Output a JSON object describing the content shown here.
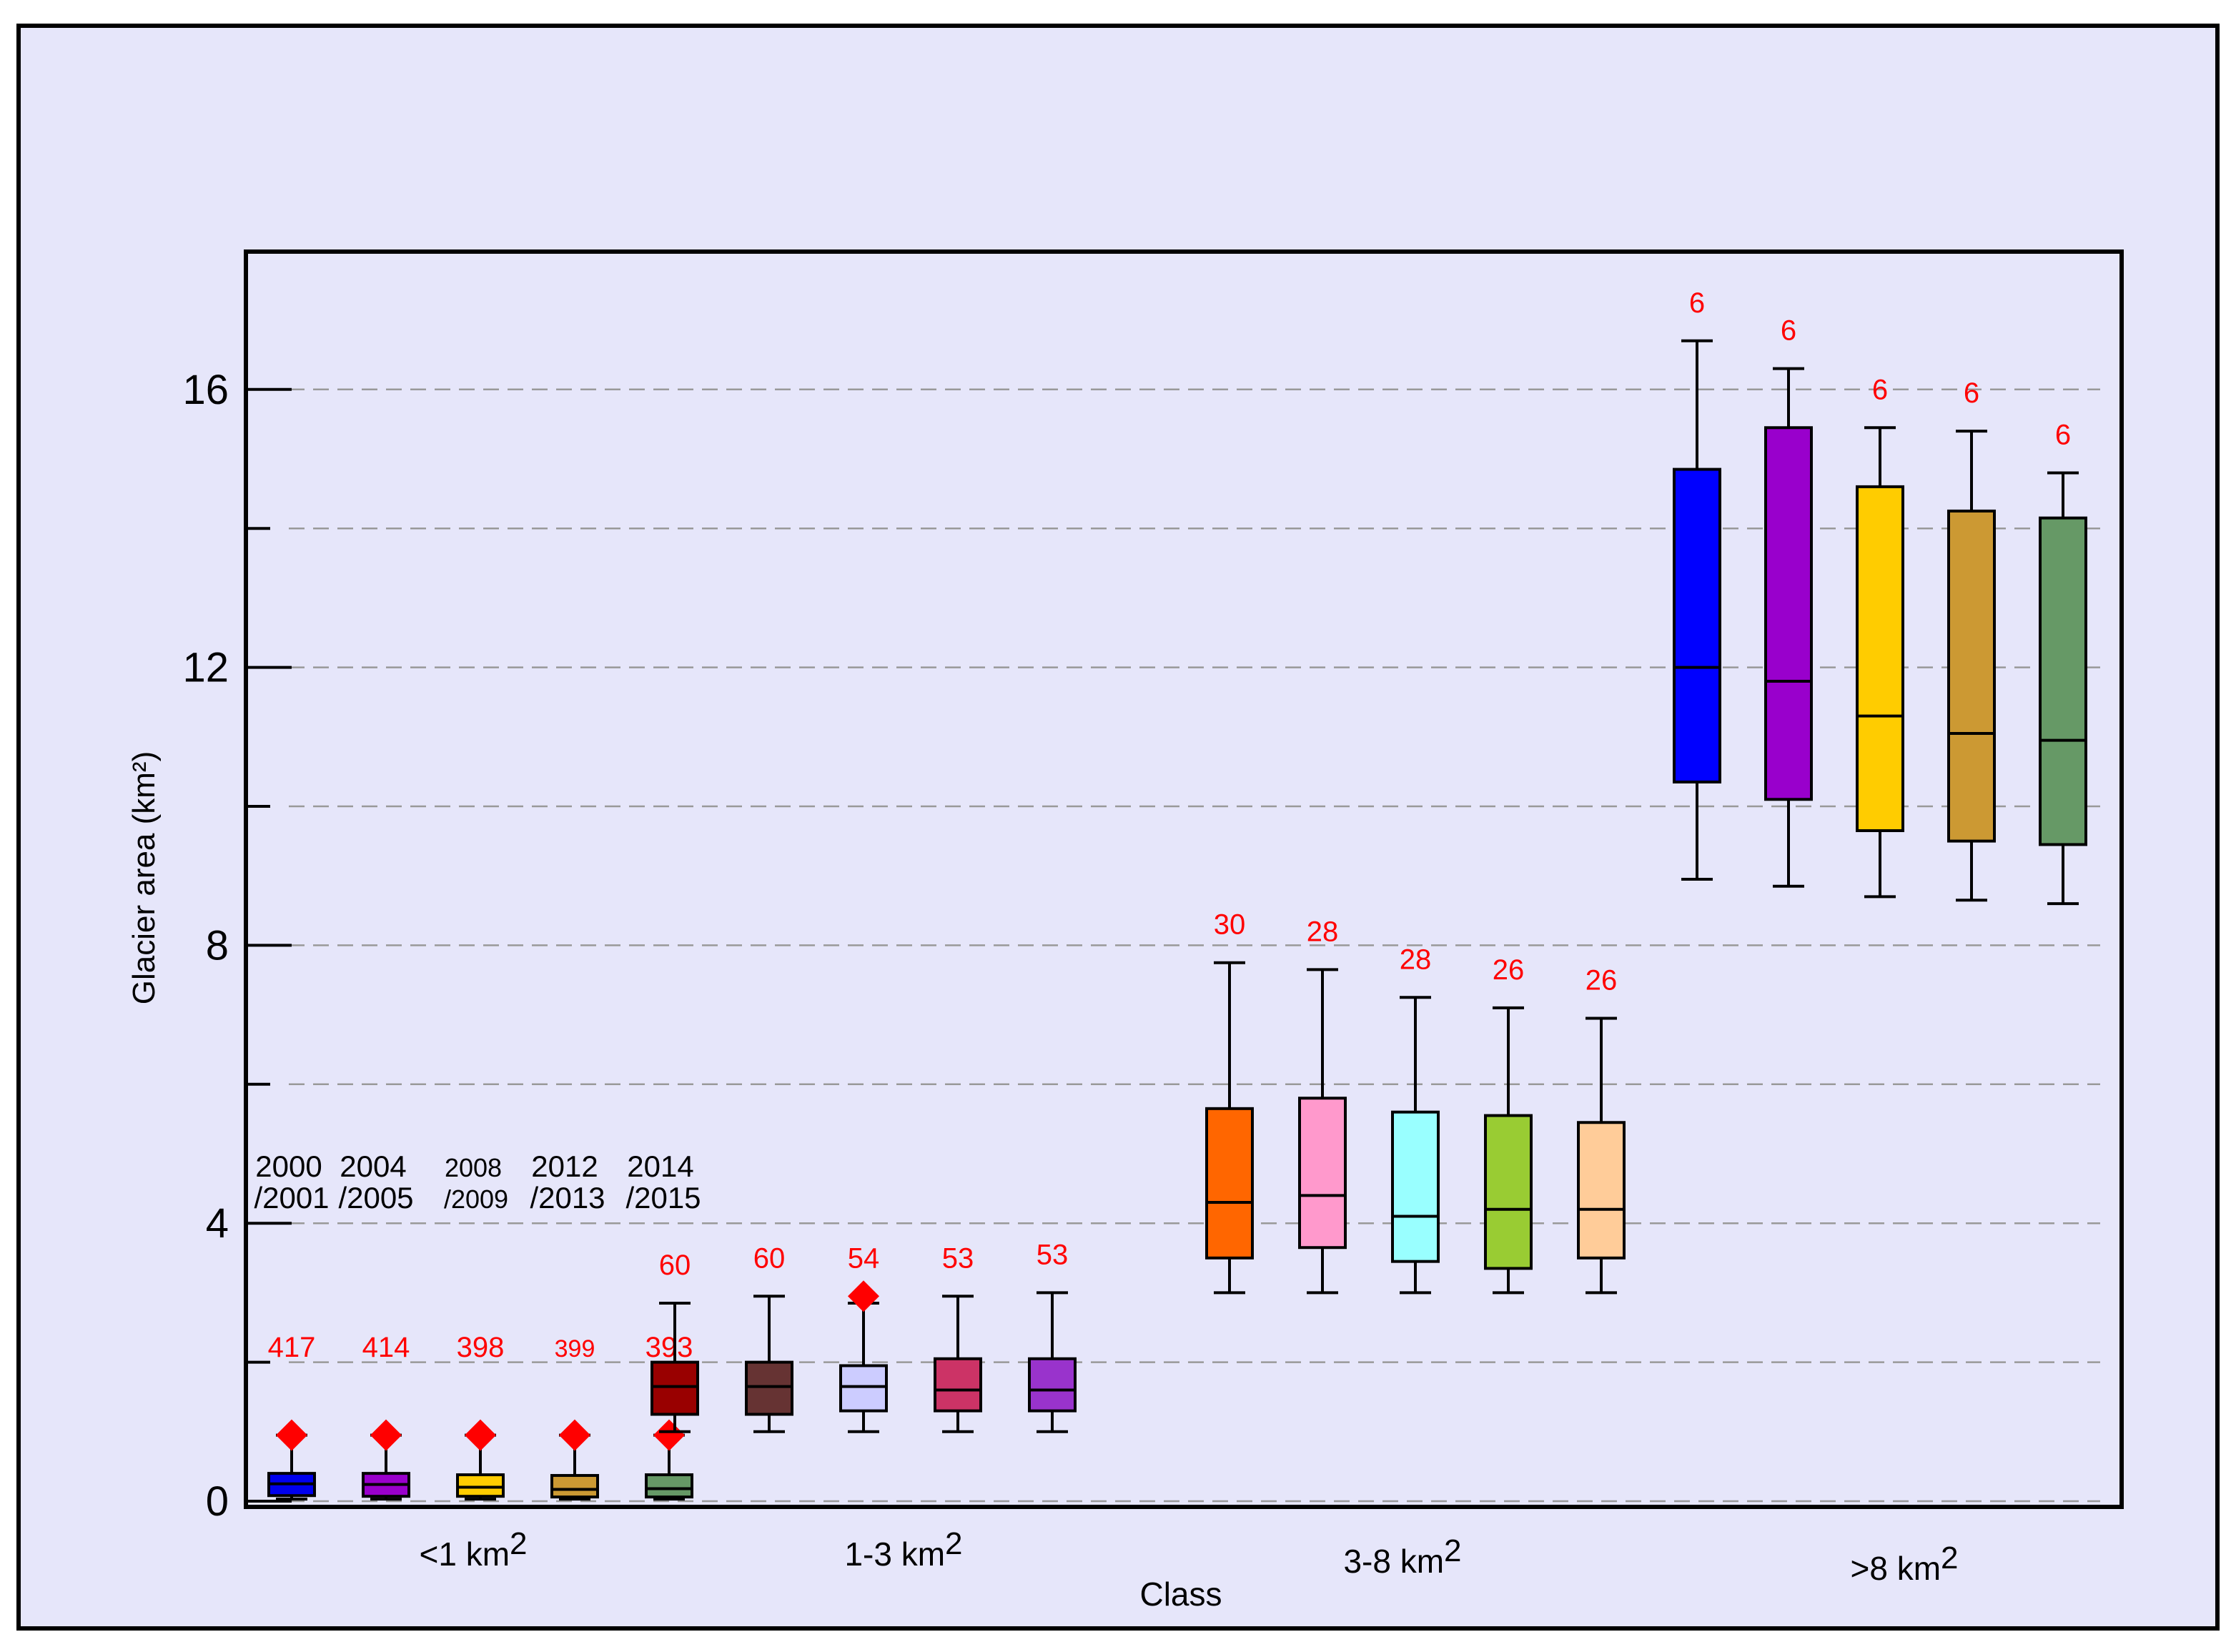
{
  "chart_data": {
    "type": "box",
    "xlabel": "Class",
    "ylabel": "Glacier area (km²)",
    "ylim": [
      0,
      18
    ],
    "yticks": [
      0,
      4,
      8,
      12,
      16
    ],
    "grid": "dashed horizontal lines every 2 km²",
    "groups": [
      {
        "label": "<1 km",
        "sup": "2"
      },
      {
        "label": "1-3 km",
        "sup": "2"
      },
      {
        "label": "3-8 km",
        "sup": "2"
      },
      {
        "label": ">8 km",
        "sup": "2"
      }
    ],
    "periods": [
      {
        "line1": "2000",
        "line2": "/2001"
      },
      {
        "line1": "2004",
        "line2": "/2005"
      },
      {
        "line1": "2008",
        "line2": "/2009"
      },
      {
        "line1": "2012",
        "line2": "/2013"
      },
      {
        "line1": "2014",
        "line2": "/2015"
      }
    ],
    "boxes": [
      {
        "group": 0,
        "period": 0,
        "color": "#0000ee",
        "min": 0.03,
        "q1": 0.08,
        "median": 0.25,
        "q3": 0.4,
        "max": 0.95,
        "outlier": 0.95,
        "n": "417"
      },
      {
        "group": 0,
        "period": 1,
        "color": "#9900cc",
        "min": 0.03,
        "q1": 0.07,
        "median": 0.24,
        "q3": 0.4,
        "max": 0.95,
        "outlier": 0.95,
        "n": "414"
      },
      {
        "group": 0,
        "period": 2,
        "color": "#ffcc00",
        "min": 0.03,
        "q1": 0.07,
        "median": 0.2,
        "q3": 0.38,
        "max": 0.95,
        "outlier": 0.95,
        "n": "398"
      },
      {
        "group": 0,
        "period": 3,
        "color": "#cc9933",
        "min": 0.03,
        "q1": 0.06,
        "median": 0.17,
        "q3": 0.37,
        "max": 0.95,
        "outlier": 0.95,
        "n": "399"
      },
      {
        "group": 0,
        "period": 4,
        "color": "#669966",
        "min": 0.03,
        "q1": 0.06,
        "median": 0.18,
        "q3": 0.38,
        "max": 0.95,
        "outlier": 0.95,
        "n": "393"
      },
      {
        "group": 1,
        "period": 0,
        "color": "#990000",
        "min": 1.0,
        "q1": 1.25,
        "median": 1.65,
        "q3": 2.0,
        "max": 2.85,
        "n": "60"
      },
      {
        "group": 1,
        "period": 1,
        "color": "#663333",
        "min": 1.0,
        "q1": 1.25,
        "median": 1.65,
        "q3": 2.0,
        "max": 2.95,
        "n": "60"
      },
      {
        "group": 1,
        "period": 2,
        "color": "#ccccff",
        "min": 1.0,
        "q1": 1.3,
        "median": 1.65,
        "q3": 1.95,
        "max": 2.85,
        "outlier": 2.95,
        "n": "54"
      },
      {
        "group": 1,
        "period": 3,
        "color": "#cc3366",
        "min": 1.0,
        "q1": 1.3,
        "median": 1.6,
        "q3": 2.05,
        "max": 2.95,
        "n": "53"
      },
      {
        "group": 1,
        "period": 4,
        "color": "#9933cc",
        "min": 1.0,
        "q1": 1.3,
        "median": 1.6,
        "q3": 2.05,
        "max": 3.0,
        "n": "53"
      },
      {
        "group": 2,
        "period": 0,
        "color": "#ff6600",
        "min": 3.0,
        "q1": 3.5,
        "median": 4.3,
        "q3": 5.65,
        "max": 7.75,
        "n": "30"
      },
      {
        "group": 2,
        "period": 1,
        "color": "#ff99cc",
        "min": 3.0,
        "q1": 3.65,
        "median": 4.4,
        "q3": 5.8,
        "max": 7.65,
        "n": "28"
      },
      {
        "group": 2,
        "period": 2,
        "color": "#99ffff",
        "min": 3.0,
        "q1": 3.45,
        "median": 4.1,
        "q3": 5.6,
        "max": 7.25,
        "n": "28"
      },
      {
        "group": 2,
        "period": 3,
        "color": "#99cc33",
        "min": 3.0,
        "q1": 3.35,
        "median": 4.2,
        "q3": 5.55,
        "max": 7.1,
        "n": "26"
      },
      {
        "group": 2,
        "period": 4,
        "color": "#ffcc99",
        "min": 3.0,
        "q1": 3.5,
        "median": 4.2,
        "q3": 5.45,
        "max": 6.95,
        "n": "26"
      },
      {
        "group": 3,
        "period": 0,
        "color": "#0000ff",
        "min": 8.95,
        "q1": 10.35,
        "median": 12.0,
        "q3": 14.85,
        "max": 16.7,
        "n": "6"
      },
      {
        "group": 3,
        "period": 1,
        "color": "#9900cc",
        "min": 8.85,
        "q1": 10.1,
        "median": 11.8,
        "q3": 15.45,
        "max": 16.3,
        "n": "6"
      },
      {
        "group": 3,
        "period": 2,
        "color": "#ffcc00",
        "min": 8.7,
        "q1": 9.65,
        "median": 11.3,
        "q3": 14.6,
        "max": 15.45,
        "n": "6"
      },
      {
        "group": 3,
        "period": 3,
        "color": "#cc9933",
        "min": 8.65,
        "q1": 9.5,
        "median": 11.05,
        "q3": 14.25,
        "max": 15.4,
        "n": "6"
      },
      {
        "group": 3,
        "period": 4,
        "color": "#669966",
        "min": 8.6,
        "q1": 9.45,
        "median": 10.95,
        "q3": 14.15,
        "max": 14.8,
        "n": "6"
      }
    ],
    "colors": {
      "frame_bg": "#e6e6fa",
      "count_label": "#ff0000",
      "outlier": "#ff0000",
      "grid": "#999999"
    }
  }
}
